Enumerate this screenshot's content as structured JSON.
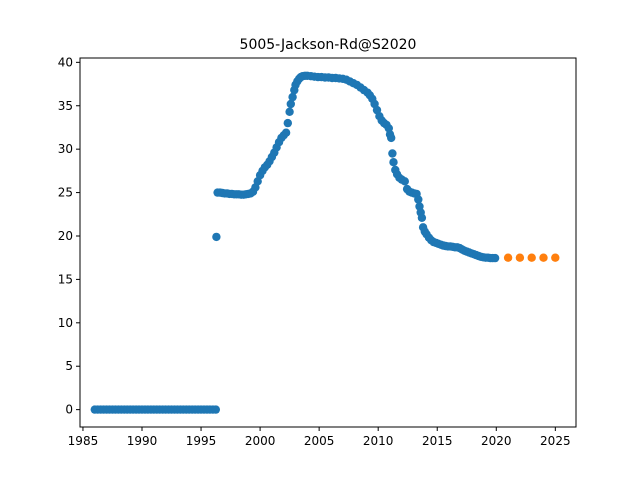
{
  "chart_data": {
    "type": "scatter",
    "title": "5005-Jackson-Rd@S2020",
    "xlabel": "",
    "ylabel": "",
    "xlim": [
      1984.75,
      2026.75
    ],
    "ylim": [
      -2,
      40.5
    ],
    "xticks": [
      1985,
      1990,
      1995,
      2000,
      2005,
      2010,
      2015,
      2020,
      2025
    ],
    "yticks": [
      0,
      5,
      10,
      15,
      20,
      25,
      30,
      35,
      40
    ],
    "grid": false,
    "legend": "none",
    "series": [
      {
        "color": "#1f77b4",
        "points": [
          [
            1986.0,
            0.0
          ],
          [
            1986.25,
            0.0
          ],
          [
            1986.5,
            0.0
          ],
          [
            1986.75,
            0.0
          ],
          [
            1987.0,
            0.0
          ],
          [
            1987.25,
            0.0
          ],
          [
            1987.5,
            0.0
          ],
          [
            1987.75,
            0.0
          ],
          [
            1988.0,
            0.0
          ],
          [
            1988.25,
            0.0
          ],
          [
            1988.5,
            0.0
          ],
          [
            1988.75,
            0.0
          ],
          [
            1989.0,
            0.0
          ],
          [
            1989.25,
            0.0
          ],
          [
            1989.5,
            0.0
          ],
          [
            1989.75,
            0.0
          ],
          [
            1990.0,
            0.0
          ],
          [
            1990.25,
            0.0
          ],
          [
            1990.5,
            0.0
          ],
          [
            1990.75,
            0.0
          ],
          [
            1991.0,
            0.0
          ],
          [
            1991.25,
            0.0
          ],
          [
            1991.5,
            0.0
          ],
          [
            1991.75,
            0.0
          ],
          [
            1992.0,
            0.0
          ],
          [
            1992.25,
            0.0
          ],
          [
            1992.5,
            0.0
          ],
          [
            1992.75,
            0.0
          ],
          [
            1993.0,
            0.0
          ],
          [
            1993.25,
            0.0
          ],
          [
            1993.5,
            0.0
          ],
          [
            1993.75,
            0.0
          ],
          [
            1994.0,
            0.0
          ],
          [
            1994.25,
            0.0
          ],
          [
            1994.5,
            0.0
          ],
          [
            1994.75,
            0.0
          ],
          [
            1995.0,
            0.0
          ],
          [
            1995.25,
            0.0
          ],
          [
            1995.5,
            0.0
          ],
          [
            1995.75,
            0.0
          ],
          [
            1996.0,
            0.0
          ],
          [
            1996.25,
            0.0
          ],
          [
            1996.3,
            19.9
          ],
          [
            1996.4,
            25.0
          ],
          [
            1996.6,
            25.0
          ],
          [
            1996.8,
            24.95
          ],
          [
            1997.0,
            24.9
          ],
          [
            1997.2,
            24.9
          ],
          [
            1997.4,
            24.85
          ],
          [
            1997.6,
            24.85
          ],
          [
            1997.8,
            24.8
          ],
          [
            1998.0,
            24.8
          ],
          [
            1998.2,
            24.8
          ],
          [
            1998.4,
            24.75
          ],
          [
            1998.6,
            24.75
          ],
          [
            1998.8,
            24.8
          ],
          [
            1999.0,
            24.85
          ],
          [
            1999.2,
            24.9
          ],
          [
            1999.4,
            25.1
          ],
          [
            1999.6,
            25.6
          ],
          [
            1999.8,
            26.3
          ],
          [
            2000.0,
            27.0
          ],
          [
            2000.2,
            27.5
          ],
          [
            2000.4,
            27.9
          ],
          [
            2000.6,
            28.2
          ],
          [
            2000.8,
            28.6
          ],
          [
            2001.0,
            29.1
          ],
          [
            2001.2,
            29.6
          ],
          [
            2001.4,
            30.2
          ],
          [
            2001.6,
            30.8
          ],
          [
            2001.8,
            31.3
          ],
          [
            2002.0,
            31.6
          ],
          [
            2002.2,
            31.9
          ],
          [
            2002.35,
            33.0
          ],
          [
            2002.5,
            34.3
          ],
          [
            2002.6,
            35.2
          ],
          [
            2002.75,
            36.0
          ],
          [
            2002.9,
            36.8
          ],
          [
            2003.0,
            37.4
          ],
          [
            2003.15,
            37.8
          ],
          [
            2003.3,
            38.1
          ],
          [
            2003.45,
            38.3
          ],
          [
            2003.6,
            38.4
          ],
          [
            2003.8,
            38.45
          ],
          [
            2004.0,
            38.45
          ],
          [
            2004.3,
            38.4
          ],
          [
            2004.6,
            38.35
          ],
          [
            2004.9,
            38.3
          ],
          [
            2005.2,
            38.3
          ],
          [
            2005.5,
            38.25
          ],
          [
            2005.8,
            38.25
          ],
          [
            2006.1,
            38.2
          ],
          [
            2006.4,
            38.2
          ],
          [
            2006.7,
            38.15
          ],
          [
            2007.0,
            38.1
          ],
          [
            2007.3,
            38.0
          ],
          [
            2007.6,
            37.8
          ],
          [
            2007.9,
            37.6
          ],
          [
            2008.2,
            37.4
          ],
          [
            2008.5,
            37.1
          ],
          [
            2008.8,
            36.8
          ],
          [
            2009.1,
            36.5
          ],
          [
            2009.3,
            36.2
          ],
          [
            2009.5,
            35.8
          ],
          [
            2009.7,
            35.2
          ],
          [
            2009.9,
            34.5
          ],
          [
            2010.1,
            33.8
          ],
          [
            2010.3,
            33.3
          ],
          [
            2010.5,
            33.0
          ],
          [
            2010.7,
            32.8
          ],
          [
            2010.9,
            32.4
          ],
          [
            2011.0,
            31.7
          ],
          [
            2011.1,
            31.3
          ],
          [
            2011.2,
            29.5
          ],
          [
            2011.3,
            28.5
          ],
          [
            2011.45,
            27.6
          ],
          [
            2011.6,
            27.1
          ],
          [
            2011.8,
            26.7
          ],
          [
            2012.0,
            26.5
          ],
          [
            2012.25,
            26.3
          ],
          [
            2012.45,
            25.4
          ],
          [
            2012.65,
            25.1
          ],
          [
            2012.85,
            25.0
          ],
          [
            2013.05,
            24.9
          ],
          [
            2013.25,
            24.85
          ],
          [
            2013.4,
            24.2
          ],
          [
            2013.5,
            23.4
          ],
          [
            2013.6,
            22.7
          ],
          [
            2013.7,
            22.1
          ],
          [
            2013.8,
            21.0
          ],
          [
            2013.95,
            20.5
          ],
          [
            2014.1,
            20.2
          ],
          [
            2014.3,
            19.8
          ],
          [
            2014.5,
            19.5
          ],
          [
            2014.7,
            19.3
          ],
          [
            2014.9,
            19.2
          ],
          [
            2015.1,
            19.1
          ],
          [
            2015.3,
            19.0
          ],
          [
            2015.5,
            18.9
          ],
          [
            2015.7,
            18.85
          ],
          [
            2015.9,
            18.8
          ],
          [
            2016.1,
            18.8
          ],
          [
            2016.3,
            18.75
          ],
          [
            2016.5,
            18.7
          ],
          [
            2016.7,
            18.7
          ],
          [
            2016.9,
            18.6
          ],
          [
            2017.1,
            18.45
          ],
          [
            2017.3,
            18.3
          ],
          [
            2017.5,
            18.2
          ],
          [
            2017.7,
            18.1
          ],
          [
            2017.9,
            18.0
          ],
          [
            2018.1,
            17.9
          ],
          [
            2018.3,
            17.8
          ],
          [
            2018.5,
            17.7
          ],
          [
            2018.7,
            17.6
          ],
          [
            2018.9,
            17.55
          ],
          [
            2019.1,
            17.5
          ],
          [
            2019.3,
            17.5
          ],
          [
            2019.5,
            17.45
          ],
          [
            2019.7,
            17.45
          ],
          [
            2019.9,
            17.45
          ]
        ]
      },
      {
        "color": "#ff7f0e",
        "points": [
          [
            2021.0,
            17.5
          ],
          [
            2022.0,
            17.5
          ],
          [
            2023.0,
            17.5
          ],
          [
            2024.0,
            17.5
          ],
          [
            2025.0,
            17.5
          ]
        ]
      }
    ]
  }
}
